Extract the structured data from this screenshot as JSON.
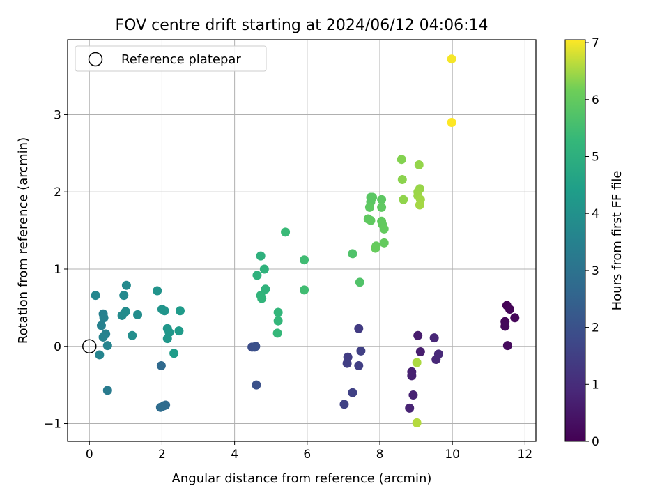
{
  "chart_data": {
    "type": "scatter",
    "title": "FOV centre drift starting at 2024/06/12 04:06:14",
    "xlabel": "Angular distance from reference (arcmin)",
    "ylabel": "Rotation from reference (arcmin)",
    "xlim": [
      -0.6,
      12.3
    ],
    "ylim": [
      -1.23,
      3.97
    ],
    "xticks": [
      0,
      2,
      4,
      6,
      8,
      10,
      12
    ],
    "yticks": [
      -1,
      0,
      1,
      2,
      3
    ],
    "grid": true,
    "legend": {
      "position": "upper left",
      "entries": [
        "Reference platepar"
      ]
    },
    "reference_point": {
      "x": 0,
      "y": 0
    },
    "colorbar": {
      "label": "Hours from first FF file",
      "range": [
        0,
        7.05
      ],
      "ticks": [
        0,
        1,
        2,
        3,
        4,
        5,
        6,
        7
      ],
      "colormap": "viridis"
    },
    "points": [
      {
        "x": 11.5,
        "y": 0.53,
        "h": 0.05
      },
      {
        "x": 11.58,
        "y": 0.48,
        "h": 0.08
      },
      {
        "x": 11.72,
        "y": 0.37,
        "h": 0.12
      },
      {
        "x": 11.45,
        "y": 0.32,
        "h": 0.15
      },
      {
        "x": 11.45,
        "y": 0.26,
        "h": 0.18
      },
      {
        "x": 11.52,
        "y": 0.01,
        "h": 0.22
      },
      {
        "x": 9.05,
        "y": 0.14,
        "h": 0.6
      },
      {
        "x": 9.12,
        "y": -0.07,
        "h": 0.65
      },
      {
        "x": 8.88,
        "y": -0.33,
        "h": 0.7
      },
      {
        "x": 8.88,
        "y": -0.38,
        "h": 0.72
      },
      {
        "x": 8.92,
        "y": -0.63,
        "h": 0.75
      },
      {
        "x": 8.82,
        "y": -0.8,
        "h": 0.78
      },
      {
        "x": 9.5,
        "y": 0.11,
        "h": 0.85
      },
      {
        "x": 9.55,
        "y": -0.17,
        "h": 0.88
      },
      {
        "x": 9.62,
        "y": -0.1,
        "h": 0.92
      },
      {
        "x": 7.42,
        "y": 0.23,
        "h": 1.4
      },
      {
        "x": 7.12,
        "y": -0.14,
        "h": 1.45
      },
      {
        "x": 7.1,
        "y": -0.22,
        "h": 1.48
      },
      {
        "x": 7.42,
        "y": -0.25,
        "h": 1.5
      },
      {
        "x": 7.48,
        "y": -0.06,
        "h": 1.52
      },
      {
        "x": 7.25,
        "y": -0.6,
        "h": 1.55
      },
      {
        "x": 7.02,
        "y": -0.75,
        "h": 1.58
      },
      {
        "x": 4.48,
        "y": -0.01,
        "h": 1.9
      },
      {
        "x": 4.55,
        "y": -0.01,
        "h": 1.93
      },
      {
        "x": 4.58,
        "y": 0.0,
        "h": 1.95
      },
      {
        "x": 4.6,
        "y": -0.5,
        "h": 1.98
      },
      {
        "x": 1.98,
        "y": -0.25,
        "h": 2.7
      },
      {
        "x": 2.1,
        "y": -0.76,
        "h": 2.75
      },
      {
        "x": 2.05,
        "y": -0.77,
        "h": 2.78
      },
      {
        "x": 1.96,
        "y": -0.79,
        "h": 2.8
      },
      {
        "x": 0.5,
        "y": -0.57,
        "h": 3.3
      },
      {
        "x": 0.38,
        "y": 0.42,
        "h": 3.45
      },
      {
        "x": 0.4,
        "y": 0.37,
        "h": 3.48
      },
      {
        "x": 0.33,
        "y": 0.27,
        "h": 3.5
      },
      {
        "x": 0.45,
        "y": 0.16,
        "h": 3.52
      },
      {
        "x": 0.38,
        "y": 0.12,
        "h": 3.55
      },
      {
        "x": 0.5,
        "y": 0.01,
        "h": 3.58
      },
      {
        "x": 0.28,
        "y": -0.11,
        "h": 3.6
      },
      {
        "x": 0.17,
        "y": 0.66,
        "h": 3.65
      },
      {
        "x": 0.95,
        "y": 0.66,
        "h": 3.75
      },
      {
        "x": 1.02,
        "y": 0.79,
        "h": 3.78
      },
      {
        "x": 0.9,
        "y": 0.4,
        "h": 3.82
      },
      {
        "x": 1.0,
        "y": 0.45,
        "h": 3.85
      },
      {
        "x": 1.33,
        "y": 0.41,
        "h": 3.88
      },
      {
        "x": 1.18,
        "y": 0.14,
        "h": 3.9
      },
      {
        "x": 1.87,
        "y": 0.72,
        "h": 4.05
      },
      {
        "x": 2.0,
        "y": 0.48,
        "h": 4.1
      },
      {
        "x": 2.07,
        "y": 0.46,
        "h": 4.12
      },
      {
        "x": 2.15,
        "y": 0.23,
        "h": 4.15
      },
      {
        "x": 2.2,
        "y": 0.18,
        "h": 4.18
      },
      {
        "x": 2.15,
        "y": 0.1,
        "h": 4.2
      },
      {
        "x": 2.5,
        "y": 0.46,
        "h": 4.3
      },
      {
        "x": 2.47,
        "y": 0.2,
        "h": 4.32
      },
      {
        "x": 2.33,
        "y": -0.09,
        "h": 4.35
      },
      {
        "x": 4.72,
        "y": 1.17,
        "h": 5.05
      },
      {
        "x": 4.62,
        "y": 0.92,
        "h": 5.08
      },
      {
        "x": 4.82,
        "y": 1.0,
        "h": 5.1
      },
      {
        "x": 4.85,
        "y": 0.74,
        "h": 5.12
      },
      {
        "x": 4.72,
        "y": 0.66,
        "h": 5.15
      },
      {
        "x": 4.75,
        "y": 0.62,
        "h": 5.18
      },
      {
        "x": 5.2,
        "y": 0.44,
        "h": 5.22
      },
      {
        "x": 5.2,
        "y": 0.33,
        "h": 5.25
      },
      {
        "x": 5.18,
        "y": 0.17,
        "h": 5.28
      },
      {
        "x": 5.4,
        "y": 1.48,
        "h": 5.35
      },
      {
        "x": 5.92,
        "y": 1.12,
        "h": 5.45
      },
      {
        "x": 5.92,
        "y": 0.73,
        "h": 5.48
      },
      {
        "x": 7.25,
        "y": 1.2,
        "h": 5.7
      },
      {
        "x": 7.45,
        "y": 0.83,
        "h": 5.72
      },
      {
        "x": 7.75,
        "y": 1.93,
        "h": 5.85
      },
      {
        "x": 7.8,
        "y": 1.93,
        "h": 5.87
      },
      {
        "x": 7.75,
        "y": 1.87,
        "h": 5.88
      },
      {
        "x": 8.05,
        "y": 1.9,
        "h": 5.9
      },
      {
        "x": 7.72,
        "y": 1.8,
        "h": 5.92
      },
      {
        "x": 8.05,
        "y": 1.8,
        "h": 5.93
      },
      {
        "x": 7.68,
        "y": 1.65,
        "h": 5.95
      },
      {
        "x": 7.75,
        "y": 1.63,
        "h": 5.96
      },
      {
        "x": 8.05,
        "y": 1.62,
        "h": 5.97
      },
      {
        "x": 8.07,
        "y": 1.58,
        "h": 5.98
      },
      {
        "x": 8.12,
        "y": 1.52,
        "h": 6.0
      },
      {
        "x": 8.12,
        "y": 1.34,
        "h": 6.02
      },
      {
        "x": 7.9,
        "y": 1.3,
        "h": 6.03
      },
      {
        "x": 7.88,
        "y": 1.27,
        "h": 6.05
      },
      {
        "x": 8.6,
        "y": 2.42,
        "h": 6.3
      },
      {
        "x": 8.62,
        "y": 2.16,
        "h": 6.35
      },
      {
        "x": 8.65,
        "y": 1.9,
        "h": 6.38
      },
      {
        "x": 9.08,
        "y": 2.35,
        "h": 6.4
      },
      {
        "x": 9.1,
        "y": 2.04,
        "h": 6.42
      },
      {
        "x": 9.05,
        "y": 2.0,
        "h": 6.44
      },
      {
        "x": 9.05,
        "y": 1.95,
        "h": 6.46
      },
      {
        "x": 9.12,
        "y": 1.9,
        "h": 6.48
      },
      {
        "x": 9.1,
        "y": 1.83,
        "h": 6.5
      },
      {
        "x": 9.02,
        "y": -0.21,
        "h": 6.55
      },
      {
        "x": 9.02,
        "y": -0.99,
        "h": 6.6
      },
      {
        "x": 9.98,
        "y": 3.72,
        "h": 7.0
      },
      {
        "x": 9.98,
        "y": 2.9,
        "h": 7.05
      }
    ]
  }
}
